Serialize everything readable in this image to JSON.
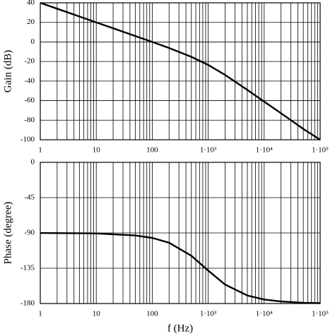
{
  "chart_data": [
    {
      "type": "line",
      "ylabel": "Gain (dB)",
      "xscale": "log",
      "grid": true,
      "minor_grid": true,
      "xlim": [
        1,
        100000
      ],
      "ylim": [
        -100,
        40
      ],
      "xticks": [
        1,
        10,
        100,
        {
          "value": 1000,
          "label": "1·10³"
        },
        {
          "value": 10000,
          "label": "1·10⁴"
        },
        {
          "value": 100000,
          "label": "1·10⁵"
        }
      ],
      "yticks": [
        40,
        20,
        0,
        -20,
        -40,
        -60,
        -80,
        -100
      ],
      "x": [
        1,
        2,
        5,
        10,
        20,
        50,
        100,
        200,
        500,
        1000,
        2000,
        5000,
        10000,
        20000,
        50000,
        100000
      ],
      "series": [
        {
          "color": "#000000",
          "values": [
            40,
            34,
            26,
            20,
            14,
            6,
            0,
            -6.2,
            -15.2,
            -23.5,
            -33.7,
            -49,
            -61,
            -72.9,
            -88.9,
            -100
          ]
        }
      ]
    },
    {
      "type": "line",
      "ylabel": "Phase (degree)",
      "xlabel": "f (Hz)",
      "xscale": "log",
      "grid": true,
      "minor_grid": true,
      "xlim": [
        1,
        100000
      ],
      "ylim": [
        -180,
        0
      ],
      "xticks": [
        1,
        10,
        100,
        {
          "value": 1000,
          "label": "1·10³"
        },
        {
          "value": 10000,
          "label": "1·10⁴"
        },
        {
          "value": 100000,
          "label": "1·10⁵"
        }
      ],
      "yticks": [
        0,
        -45,
        -90,
        -135,
        -180
      ],
      "x": [
        1,
        10,
        50,
        100,
        200,
        500,
        1000,
        2000,
        5000,
        10000,
        20000,
        50000,
        100000
      ],
      "series": [
        {
          "color": "#000000",
          "values": [
            -90.1,
            -90.6,
            -93.2,
            -96.3,
            -102.5,
            -119.1,
            -138,
            -155.8,
            -169.8,
            -174.9,
            -177.4,
            -179,
            -179.5
          ]
        }
      ]
    }
  ]
}
